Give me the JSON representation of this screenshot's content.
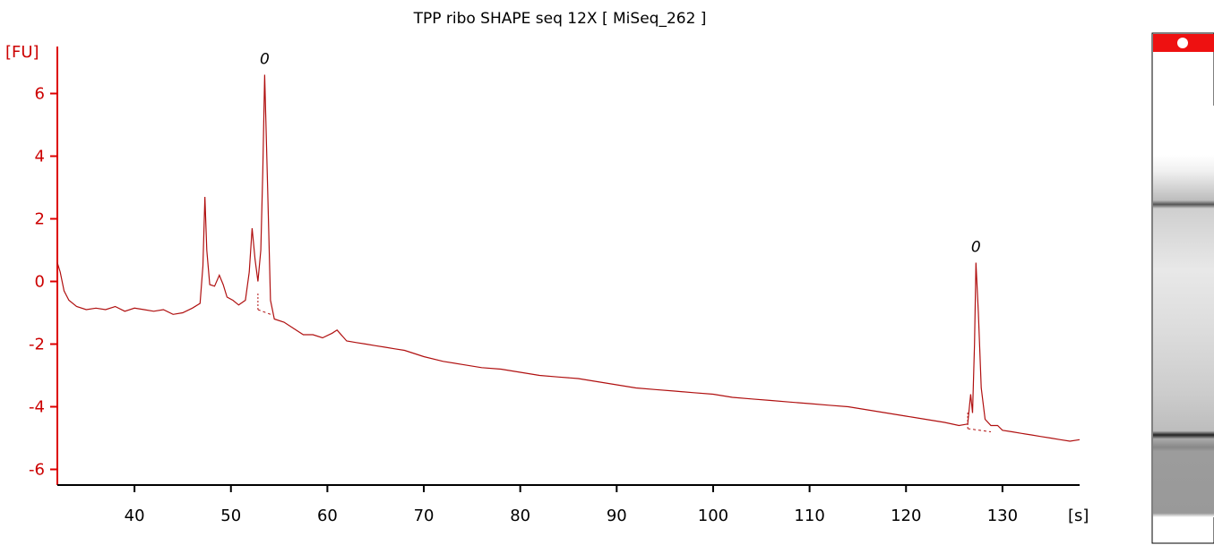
{
  "chart_data": {
    "type": "line",
    "title": "TPP ribo SHAPE seq 12X  [ MiSeq_262 ]",
    "ylabel": "[FU]",
    "xlabel": "[s]",
    "xlim": [
      32,
      138
    ],
    "ylim": [
      -6.5,
      7.5
    ],
    "xticks": [
      40,
      50,
      60,
      70,
      80,
      90,
      100,
      110,
      120,
      130
    ],
    "yticks": [
      -6,
      -4,
      -2,
      0,
      2,
      4,
      6
    ],
    "grid": false,
    "line_color": "#b01010",
    "axis_color": "#dd0000",
    "series": [
      {
        "points": [
          [
            32.0,
            0.6
          ],
          [
            32.3,
            0.3
          ],
          [
            32.7,
            -0.3
          ],
          [
            33.2,
            -0.6
          ],
          [
            34.0,
            -0.8
          ],
          [
            35.0,
            -0.9
          ],
          [
            36.0,
            -0.85
          ],
          [
            37.0,
            -0.9
          ],
          [
            38.0,
            -0.8
          ],
          [
            39.0,
            -0.95
          ],
          [
            40.0,
            -0.85
          ],
          [
            41.0,
            -0.9
          ],
          [
            42.0,
            -0.95
          ],
          [
            43.0,
            -0.9
          ],
          [
            44.0,
            -1.05
          ],
          [
            45.0,
            -1.0
          ],
          [
            46.0,
            -0.85
          ],
          [
            46.8,
            -0.7
          ],
          [
            47.1,
            0.5
          ],
          [
            47.3,
            2.7
          ],
          [
            47.5,
            1.0
          ],
          [
            47.8,
            -0.1
          ],
          [
            48.3,
            -0.15
          ],
          [
            48.8,
            0.2
          ],
          [
            49.2,
            -0.1
          ],
          [
            49.6,
            -0.5
          ],
          [
            50.2,
            -0.6
          ],
          [
            50.8,
            -0.75
          ],
          [
            51.5,
            -0.6
          ],
          [
            51.9,
            0.3
          ],
          [
            52.2,
            1.7
          ],
          [
            52.5,
            0.7
          ],
          [
            52.8,
            0.0
          ],
          [
            53.1,
            1.0
          ],
          [
            53.3,
            3.5
          ],
          [
            53.5,
            6.6
          ],
          [
            53.8,
            3.0
          ],
          [
            54.1,
            -0.6
          ],
          [
            54.5,
            -1.2
          ],
          [
            55.5,
            -1.3
          ],
          [
            56.5,
            -1.5
          ],
          [
            57.5,
            -1.7
          ],
          [
            58.5,
            -1.7
          ],
          [
            59.5,
            -1.8
          ],
          [
            60.5,
            -1.65
          ],
          [
            61.0,
            -1.55
          ],
          [
            62.0,
            -1.9
          ],
          [
            63.0,
            -1.95
          ],
          [
            64.0,
            -2.0
          ],
          [
            65.0,
            -2.05
          ],
          [
            66.0,
            -2.1
          ],
          [
            67.0,
            -2.15
          ],
          [
            68.0,
            -2.2
          ],
          [
            69.0,
            -2.3
          ],
          [
            70.0,
            -2.4
          ],
          [
            72.0,
            -2.55
          ],
          [
            74.0,
            -2.65
          ],
          [
            76.0,
            -2.75
          ],
          [
            78.0,
            -2.8
          ],
          [
            80.0,
            -2.9
          ],
          [
            82.0,
            -3.0
          ],
          [
            84.0,
            -3.05
          ],
          [
            86.0,
            -3.1
          ],
          [
            88.0,
            -3.2
          ],
          [
            90.0,
            -3.3
          ],
          [
            92.0,
            -3.4
          ],
          [
            94.0,
            -3.45
          ],
          [
            96.0,
            -3.5
          ],
          [
            98.0,
            -3.55
          ],
          [
            100.0,
            -3.6
          ],
          [
            102.0,
            -3.7
          ],
          [
            104.0,
            -3.75
          ],
          [
            106.0,
            -3.8
          ],
          [
            108.0,
            -3.85
          ],
          [
            110.0,
            -3.9
          ],
          [
            112.0,
            -3.95
          ],
          [
            114.0,
            -4.0
          ],
          [
            116.0,
            -4.1
          ],
          [
            118.0,
            -4.2
          ],
          [
            120.0,
            -4.3
          ],
          [
            122.0,
            -4.4
          ],
          [
            124.0,
            -4.5
          ],
          [
            125.5,
            -4.6
          ],
          [
            126.4,
            -4.55
          ],
          [
            126.7,
            -3.6
          ],
          [
            126.9,
            -4.2
          ],
          [
            127.1,
            -2.0
          ],
          [
            127.25,
            0.6
          ],
          [
            127.5,
            -1.0
          ],
          [
            127.8,
            -3.4
          ],
          [
            128.2,
            -4.4
          ],
          [
            128.8,
            -4.6
          ],
          [
            129.5,
            -4.6
          ],
          [
            130.0,
            -4.75
          ],
          [
            131.0,
            -4.8
          ],
          [
            132.0,
            -4.85
          ],
          [
            133.0,
            -4.9
          ],
          [
            134.0,
            -4.95
          ],
          [
            135.0,
            -5.0
          ],
          [
            136.0,
            -5.05
          ],
          [
            137.0,
            -5.1
          ],
          [
            138.0,
            -5.05
          ]
        ]
      }
    ],
    "peak_markers": [
      {
        "x": 53.5,
        "y": 6.6,
        "label": "0"
      },
      {
        "x": 127.25,
        "y": 0.6,
        "label": "0"
      }
    ],
    "baselines": [
      [
        [
          52.8,
          -0.9
        ],
        [
          54.1,
          -1.05
        ]
      ],
      [
        [
          126.4,
          -4.7
        ],
        [
          128.8,
          -4.8
        ]
      ]
    ]
  },
  "gel_lane": {
    "header_color": "#ee1111",
    "background": "#ffffff"
  }
}
